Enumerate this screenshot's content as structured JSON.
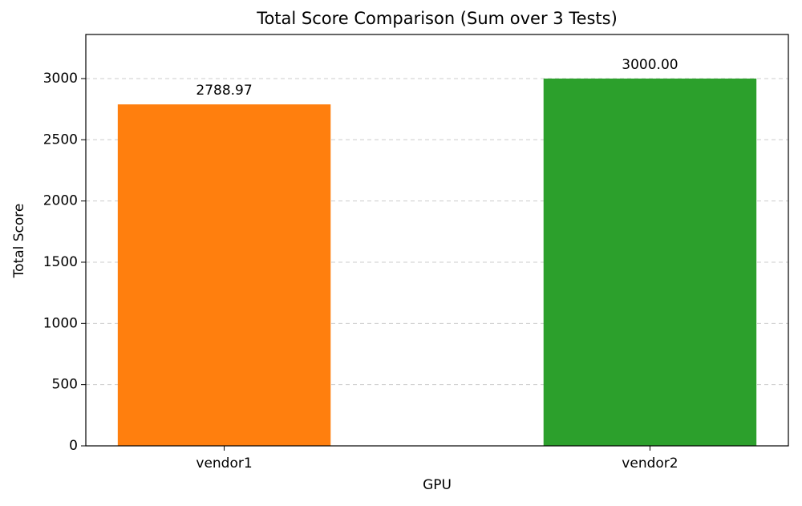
{
  "chart_data": {
    "type": "bar",
    "title": "Total Score Comparison (Sum over 3 Tests)",
    "x_label": "GPU",
    "y_label": "Total Score",
    "categories": [
      "vendor1",
      "vendor2"
    ],
    "values": [
      2788.97,
      3000.0
    ],
    "value_labels": [
      "2788.97",
      "3000.00"
    ],
    "colors": [
      "#ff7f0e",
      "#2ca02c"
    ],
    "ylim": [
      0,
      3360
    ],
    "yticks": [
      0,
      500,
      1000,
      1500,
      2000,
      2500,
      3000
    ],
    "grid": true
  }
}
